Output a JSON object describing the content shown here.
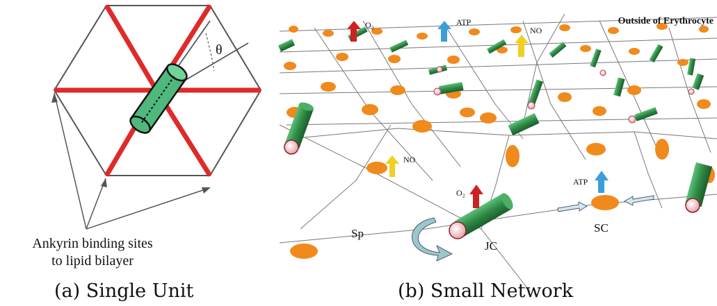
{
  "panel_a": {
    "angle_label": "θ",
    "note_line1": "Ankyrin binding sites",
    "note_line2": "to lipid bilayer",
    "caption": "(a) Single Unit"
  },
  "panel_b": {
    "title": "Outside of Erythrocyte",
    "labels": {
      "o2": "O₂",
      "atp": "ATP",
      "no": "NO",
      "sp": "Sp",
      "jc": "JC",
      "sc": "SC"
    },
    "caption": "(b) Small Network"
  },
  "colors": {
    "spectrin": "#e02a2a",
    "actin": "#3aa86a",
    "node": "#f08a1c",
    "arrow_o2": "#cc2222",
    "arrow_atp": "#3b9ed8",
    "arrow_no": "#f0d020"
  }
}
